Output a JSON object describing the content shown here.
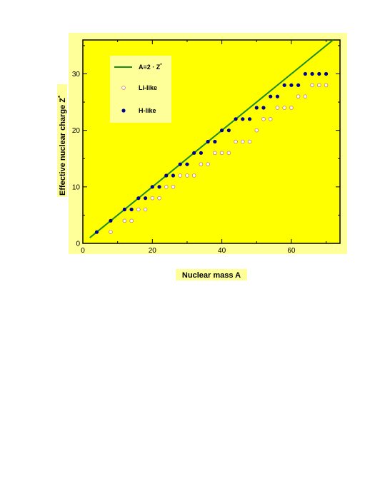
{
  "chart_data": {
    "type": "scatter",
    "xlabel": "Nuclear mass A",
    "ylabel": "Effective nuclear charge Z",
    "ylabel_superscript": "*",
    "xlim": [
      0,
      74
    ],
    "ylim": [
      0,
      36
    ],
    "x_ticks": [
      0,
      20,
      40,
      60
    ],
    "y_ticks": [
      0,
      10,
      20,
      30
    ],
    "grid": false,
    "legend_position": "top-left",
    "colors": {
      "background": "#ffff99",
      "plot_background": "#ffff00",
      "line": "#1a8a1a",
      "h_like": "#000099",
      "li_like_edge": "#cc7777"
    },
    "series": [
      {
        "name": "A=2 · Z",
        "name_superscript": "*",
        "kind": "line",
        "x": [
          2,
          72
        ],
        "y": [
          1,
          36
        ]
      },
      {
        "name": "Li-like",
        "kind": "open-circle",
        "x": [
          8,
          12,
          14,
          16,
          18,
          20,
          22,
          24,
          26,
          28,
          30,
          32,
          34,
          36,
          38,
          40,
          42,
          44,
          46,
          48,
          50,
          52,
          54,
          56,
          58,
          60,
          62,
          64,
          66,
          68,
          70
        ],
        "y": [
          2,
          4,
          4,
          6,
          6,
          8,
          8,
          10,
          10,
          12,
          12,
          12,
          14,
          14,
          16,
          16,
          16,
          18,
          18,
          18,
          20,
          22,
          22,
          24,
          24,
          24,
          26,
          26,
          28,
          28,
          28
        ]
      },
      {
        "name": "H-like",
        "kind": "filled-circle",
        "x": [
          4,
          8,
          12,
          14,
          16,
          18,
          20,
          22,
          24,
          26,
          28,
          30,
          32,
          34,
          36,
          38,
          40,
          42,
          44,
          46,
          48,
          50,
          52,
          54,
          56,
          58,
          60,
          62,
          64,
          66,
          68,
          70
        ],
        "y": [
          2,
          4,
          6,
          6,
          8,
          8,
          10,
          10,
          12,
          12,
          14,
          14,
          16,
          16,
          18,
          18,
          20,
          20,
          22,
          22,
          22,
          24,
          24,
          26,
          26,
          28,
          28,
          28,
          30,
          30,
          30,
          30
        ]
      }
    ]
  }
}
